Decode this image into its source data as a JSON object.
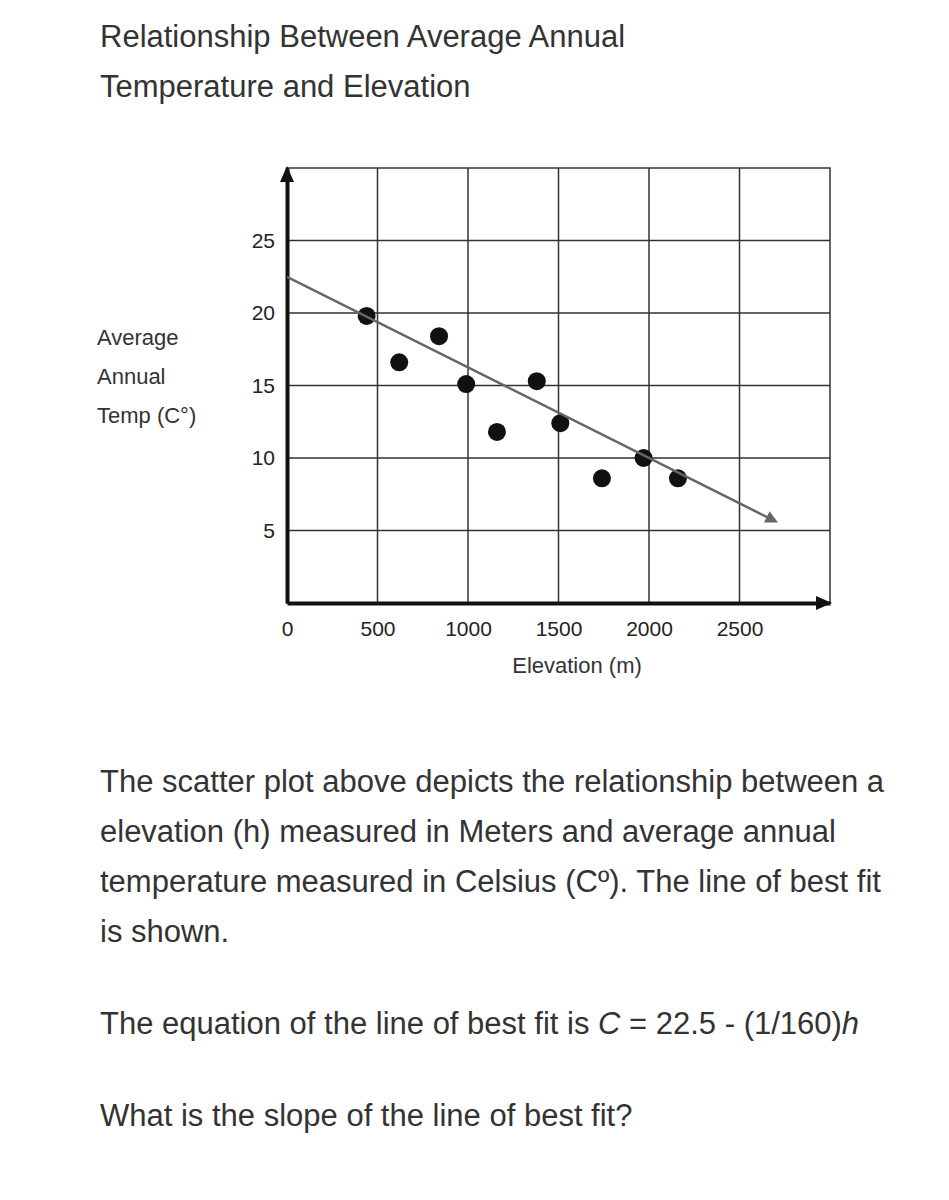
{
  "chart_data": {
    "type": "scatter",
    "title": [
      "Relationship Between Average Annual",
      "Temperature and Elevation"
    ],
    "xlabel": "Elevation (m)",
    "ylabel": [
      "Average",
      "Annual",
      "Temp (C°)"
    ],
    "xlim": [
      0,
      3000
    ],
    "xticks": [
      0,
      500,
      1000,
      1500,
      2000,
      2500
    ],
    "ylim": [
      0,
      30
    ],
    "yticks": [
      5,
      10,
      15,
      20,
      25
    ],
    "grid": true,
    "series": [
      {
        "type": "scatter",
        "color": "#111111",
        "marker": "circle",
        "x": [
          440,
          620,
          840,
          990,
          1160,
          1380,
          1510,
          1740,
          1970,
          2160
        ],
        "values": [
          19.8,
          16.6,
          18.4,
          15.1,
          11.8,
          15.3,
          12.4,
          8.6,
          10.0,
          8.6
        ]
      },
      {
        "type": "line",
        "color": "#666666",
        "marker": "arrow",
        "line_style": "solid",
        "x": [
          0,
          2700
        ],
        "values": [
          22.5,
          5.625
        ]
      }
    ]
  },
  "page": {
    "paragraphs": [
      [
        {
          "text": "The scatter plot above depicts the relationship between a elevation (h) measured in Meters and average annual temperature measured in Celsius (Cº). The line of best fit is shown."
        }
      ],
      [
        {
          "text": "The equation of the line of best fit is "
        },
        {
          "text": "C",
          "italic": true
        },
        {
          "text": " = 22.5 - (1/160)"
        },
        {
          "text": "h",
          "italic": true
        }
      ],
      [
        {
          "text": "What is the slope of the line of best fit?"
        }
      ]
    ]
  }
}
